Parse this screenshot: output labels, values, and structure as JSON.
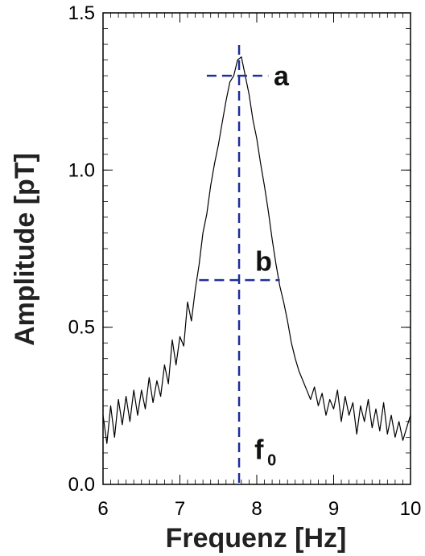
{
  "chart_data": {
    "type": "line",
    "title": "",
    "xlabel": "Frequenz  [Hz]",
    "ylabel": "Amplitude  [pT]",
    "xlim": [
      6,
      10
    ],
    "ylim": [
      0.0,
      1.5
    ],
    "xticks": [
      "6",
      "7",
      "8",
      "9",
      "10"
    ],
    "yticks": [
      "0.0",
      "0.5",
      "1.0",
      "1.5"
    ],
    "grid": false,
    "series": [
      {
        "color": "#000000",
        "x": [
          6.0,
          6.05,
          6.1,
          6.15,
          6.2,
          6.25,
          6.3,
          6.35,
          6.4,
          6.45,
          6.5,
          6.55,
          6.6,
          6.65,
          6.7,
          6.75,
          6.8,
          6.85,
          6.9,
          6.95,
          7.0,
          7.05,
          7.1,
          7.15,
          7.2,
          7.25,
          7.3,
          7.35,
          7.4,
          7.45,
          7.5,
          7.55,
          7.6,
          7.65,
          7.7,
          7.75,
          7.8,
          7.85,
          7.9,
          7.95,
          8.0,
          8.05,
          8.1,
          8.15,
          8.2,
          8.25,
          8.3,
          8.35,
          8.4,
          8.45,
          8.5,
          8.55,
          8.6,
          8.65,
          8.7,
          8.75,
          8.8,
          8.85,
          8.9,
          8.95,
          9.0,
          9.05,
          9.1,
          9.15,
          9.2,
          9.25,
          9.3,
          9.35,
          9.4,
          9.45,
          9.5,
          9.55,
          9.6,
          9.65,
          9.7,
          9.75,
          9.8,
          9.85,
          9.9,
          9.95,
          10.0
        ],
        "y": [
          0.22,
          0.13,
          0.25,
          0.15,
          0.27,
          0.19,
          0.28,
          0.2,
          0.3,
          0.22,
          0.3,
          0.24,
          0.34,
          0.26,
          0.33,
          0.28,
          0.38,
          0.32,
          0.46,
          0.38,
          0.47,
          0.44,
          0.58,
          0.52,
          0.62,
          0.7,
          0.8,
          0.86,
          0.95,
          1.02,
          1.08,
          1.15,
          1.22,
          1.28,
          1.3,
          1.35,
          1.36,
          1.3,
          1.24,
          1.16,
          1.1,
          1.02,
          0.95,
          0.87,
          0.78,
          0.7,
          0.63,
          0.58,
          0.52,
          0.45,
          0.4,
          0.36,
          0.33,
          0.3,
          0.27,
          0.31,
          0.25,
          0.29,
          0.22,
          0.27,
          0.24,
          0.3,
          0.2,
          0.28,
          0.22,
          0.26,
          0.16,
          0.25,
          0.2,
          0.27,
          0.18,
          0.24,
          0.17,
          0.26,
          0.16,
          0.22,
          0.15,
          0.2,
          0.14,
          0.18,
          0.22
        ]
      }
    ],
    "reference_lines": [
      {
        "kind": "vertical",
        "x": 7.77,
        "color": "#1f2f99"
      },
      {
        "kind": "horizontal",
        "y": 1.3,
        "x_from": 7.35,
        "x_to": 8.15,
        "label": "a",
        "color": "#1f2f99"
      },
      {
        "kind": "horizontal",
        "y": 0.65,
        "x_from": 7.25,
        "x_to": 8.3,
        "label": "b",
        "color": "#1f2f99"
      }
    ],
    "annotations": [
      {
        "text": "a",
        "x": 8.22,
        "y": 1.27
      },
      {
        "text": "b",
        "x": 7.98,
        "y": 0.68
      },
      {
        "text": "f",
        "subscript": "0",
        "x": 7.97,
        "y": 0.08
      }
    ]
  }
}
